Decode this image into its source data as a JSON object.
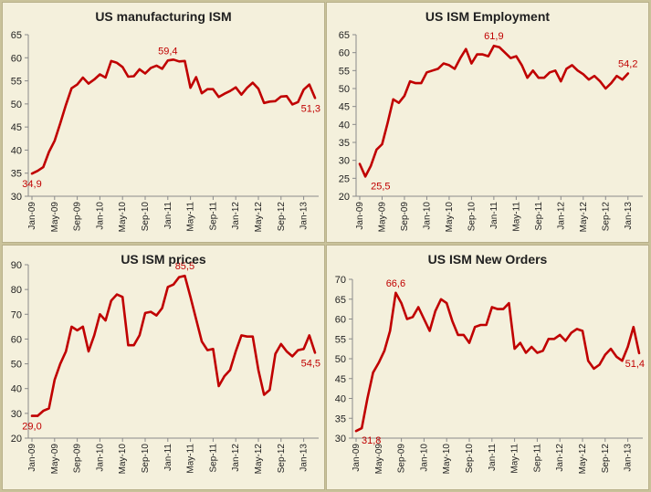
{
  "theme": {
    "line_color": "#c00000",
    "annotation_color": "#c00000",
    "axis_color": "#8a8a8a",
    "text_color": "#1f1f1f"
  },
  "chart_data": [
    {
      "type": "line",
      "title": "US manufacturing ISM",
      "ylim": [
        30,
        65
      ],
      "yticks": [
        30,
        35,
        40,
        45,
        50,
        55,
        60,
        65
      ],
      "xtick_labels": [
        "Jan-09",
        "May-09",
        "Sep-09",
        "Jan-10",
        "May-10",
        "Sep-10",
        "Jan-11",
        "May-11",
        "Sep-11",
        "Jan-12",
        "May-12",
        "Sep-12",
        "Jan-13"
      ],
      "x_start": "Jan-09",
      "values": [
        34.9,
        35.5,
        36.3,
        39.6,
        42.0,
        45.8,
        49.8,
        53.4,
        54.2,
        55.7,
        54.4,
        55.3,
        56.4,
        55.7,
        59.3,
        58.9,
        58.0,
        55.9,
        56.0,
        57.5,
        56.6,
        57.8,
        58.3,
        57.6,
        59.4,
        59.6,
        59.2,
        59.3,
        53.5,
        55.8,
        52.3,
        53.2,
        53.2,
        51.5,
        52.2,
        52.8,
        53.6,
        52.0,
        53.5,
        54.6,
        53.3,
        50.2,
        50.5,
        50.6,
        51.6,
        51.7,
        49.9,
        50.4,
        53.1,
        54.2,
        51.3
      ],
      "annotations": [
        {
          "label": "34,9",
          "index": 0,
          "value": 34.9,
          "pos": "below"
        },
        {
          "label": "59,4",
          "index": 24,
          "value": 59.4,
          "pos": "above"
        },
        {
          "label": "51,3",
          "index": 50,
          "value": 51.3,
          "pos": "below"
        }
      ]
    },
    {
      "type": "line",
      "title": "US ISM Employment",
      "ylim": [
        20,
        65
      ],
      "yticks": [
        20,
        25,
        30,
        35,
        40,
        45,
        50,
        55,
        60,
        65
      ],
      "xtick_labels": [
        "Jan-09",
        "May-09",
        "Sep-09",
        "Jan-10",
        "May-10",
        "Sep-10",
        "Jan-11",
        "May-11",
        "Sep-11",
        "Jan-12",
        "May-12",
        "Sep-12",
        "Jan-13"
      ],
      "x_start": "Jan-09",
      "values": [
        29.0,
        25.5,
        28.5,
        33.0,
        34.5,
        40.5,
        47.0,
        46.0,
        48.0,
        52.0,
        51.5,
        51.5,
        54.5,
        55.0,
        55.5,
        57.0,
        56.5,
        55.5,
        58.5,
        61.0,
        57.0,
        59.5,
        59.5,
        59.0,
        61.9,
        61.5,
        60.0,
        58.5,
        59.0,
        56.5,
        53.0,
        55.0,
        53.0,
        53.0,
        54.5,
        55.0,
        52.0,
        55.5,
        56.5,
        55.0,
        54.0,
        52.5,
        53.5,
        52.0,
        50.0,
        51.5,
        53.5,
        52.5,
        54.2
      ],
      "annotations": [
        {
          "label": "25,5",
          "index": 1,
          "value": 25.5,
          "pos": "below-right"
        },
        {
          "label": "61,9",
          "index": 24,
          "value": 61.9,
          "pos": "above"
        },
        {
          "label": "54,2",
          "index": 48,
          "value": 54.2,
          "pos": "above"
        }
      ]
    },
    {
      "type": "line",
      "title": "US ISM prices",
      "ylim": [
        20,
        90
      ],
      "yticks": [
        20,
        30,
        40,
        50,
        60,
        70,
        80,
        90
      ],
      "xtick_labels": [
        "Jan-09",
        "May-09",
        "Sep-09",
        "Jan-10",
        "May-10",
        "Sep-10",
        "Jan-11",
        "May-11",
        "Sep-11",
        "Jan-12",
        "May-12",
        "Sep-12",
        "Jan-13"
      ],
      "x_start": "Jan-09",
      "values": [
        29.0,
        29.0,
        31.0,
        32.0,
        43.5,
        50.0,
        55.0,
        65.0,
        63.5,
        65.0,
        55.0,
        61.5,
        70.0,
        67.5,
        75.5,
        78.0,
        77.0,
        57.5,
        57.5,
        61.5,
        70.5,
        71.0,
        69.5,
        72.5,
        81.0,
        82.0,
        85.0,
        85.5,
        77.0,
        68.0,
        59.0,
        55.5,
        56.0,
        41.0,
        45.0,
        47.5,
        55.0,
        61.5,
        61.0,
        61.0,
        47.5,
        37.5,
        39.5,
        54.0,
        58.0,
        55.0,
        53.0,
        55.5,
        56.0,
        61.5,
        54.5
      ],
      "annotations": [
        {
          "label": "29,0",
          "index": 0,
          "value": 29.0,
          "pos": "below"
        },
        {
          "label": "85,5",
          "index": 27,
          "value": 85.5,
          "pos": "above"
        },
        {
          "label": "54,5",
          "index": 50,
          "value": 54.5,
          "pos": "below"
        }
      ]
    },
    {
      "type": "line",
      "title": "US ISM New Orders",
      "ylim": [
        30,
        70
      ],
      "yticks": [
        30,
        35,
        40,
        45,
        50,
        55,
        60,
        65,
        70
      ],
      "xtick_labels": [
        "Jan-09",
        "May-09",
        "Sep-09",
        "Jan-10",
        "May-10",
        "Sep-10",
        "Jan-11",
        "May-11",
        "Sep-11",
        "Jan-12",
        "May-12",
        "Sep-12",
        "Jan-13"
      ],
      "x_start": "Jan-09",
      "values": [
        31.8,
        32.5,
        40.0,
        46.5,
        49.0,
        52.0,
        57.0,
        66.6,
        64.0,
        60.0,
        60.5,
        63.0,
        60.0,
        57.0,
        62.0,
        65.0,
        64.0,
        59.5,
        56.0,
        56.0,
        54.0,
        58.0,
        58.5,
        58.5,
        63.0,
        62.5,
        62.5,
        64.0,
        52.5,
        54.0,
        51.5,
        53.0,
        51.5,
        52.0,
        55.0,
        55.0,
        56.0,
        54.5,
        56.5,
        57.5,
        57.0,
        49.5,
        47.5,
        48.5,
        51.0,
        52.5,
        50.5,
        49.5,
        53.0,
        58.0,
        51.4
      ],
      "annotations": [
        {
          "label": "31,8",
          "index": 0,
          "value": 31.8,
          "pos": "below-right"
        },
        {
          "label": "66,6",
          "index": 7,
          "value": 66.6,
          "pos": "above"
        },
        {
          "label": "51,4",
          "index": 50,
          "value": 51.4,
          "pos": "below"
        }
      ]
    }
  ]
}
